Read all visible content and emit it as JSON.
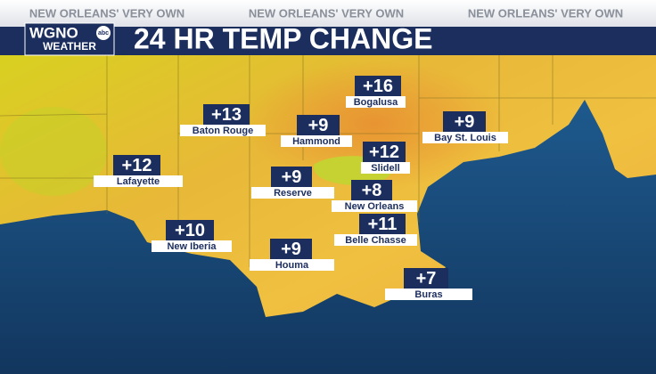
{
  "header": {
    "ticker": [
      "NEW ORLEANS' VERY OWN",
      "NEW ORLEANS' VERY OWN",
      "NEW ORLEANS' VERY OWN"
    ],
    "logo": {
      "call_sign": "WGNO",
      "network": "abc",
      "subtitle": "WEATHER"
    },
    "title": "24 HR TEMP CHANGE"
  },
  "map": {
    "locations": [
      {
        "name": "Bogalusa",
        "change": "+16"
      },
      {
        "name": "Baton Rouge",
        "change": "+13"
      },
      {
        "name": "Hammond",
        "change": "+9"
      },
      {
        "name": "Bay St. Louis",
        "change": "+9"
      },
      {
        "name": "Slidell",
        "change": "+12"
      },
      {
        "name": "Lafayette",
        "change": "+12"
      },
      {
        "name": "Reserve",
        "change": "+9"
      },
      {
        "name": "New Orleans",
        "change": "+8"
      },
      {
        "name": "Belle Chasse",
        "change": "+11"
      },
      {
        "name": "New Iberia",
        "change": "+10"
      },
      {
        "name": "Houma",
        "change": "+9"
      },
      {
        "name": "Buras",
        "change": "+7"
      }
    ]
  }
}
